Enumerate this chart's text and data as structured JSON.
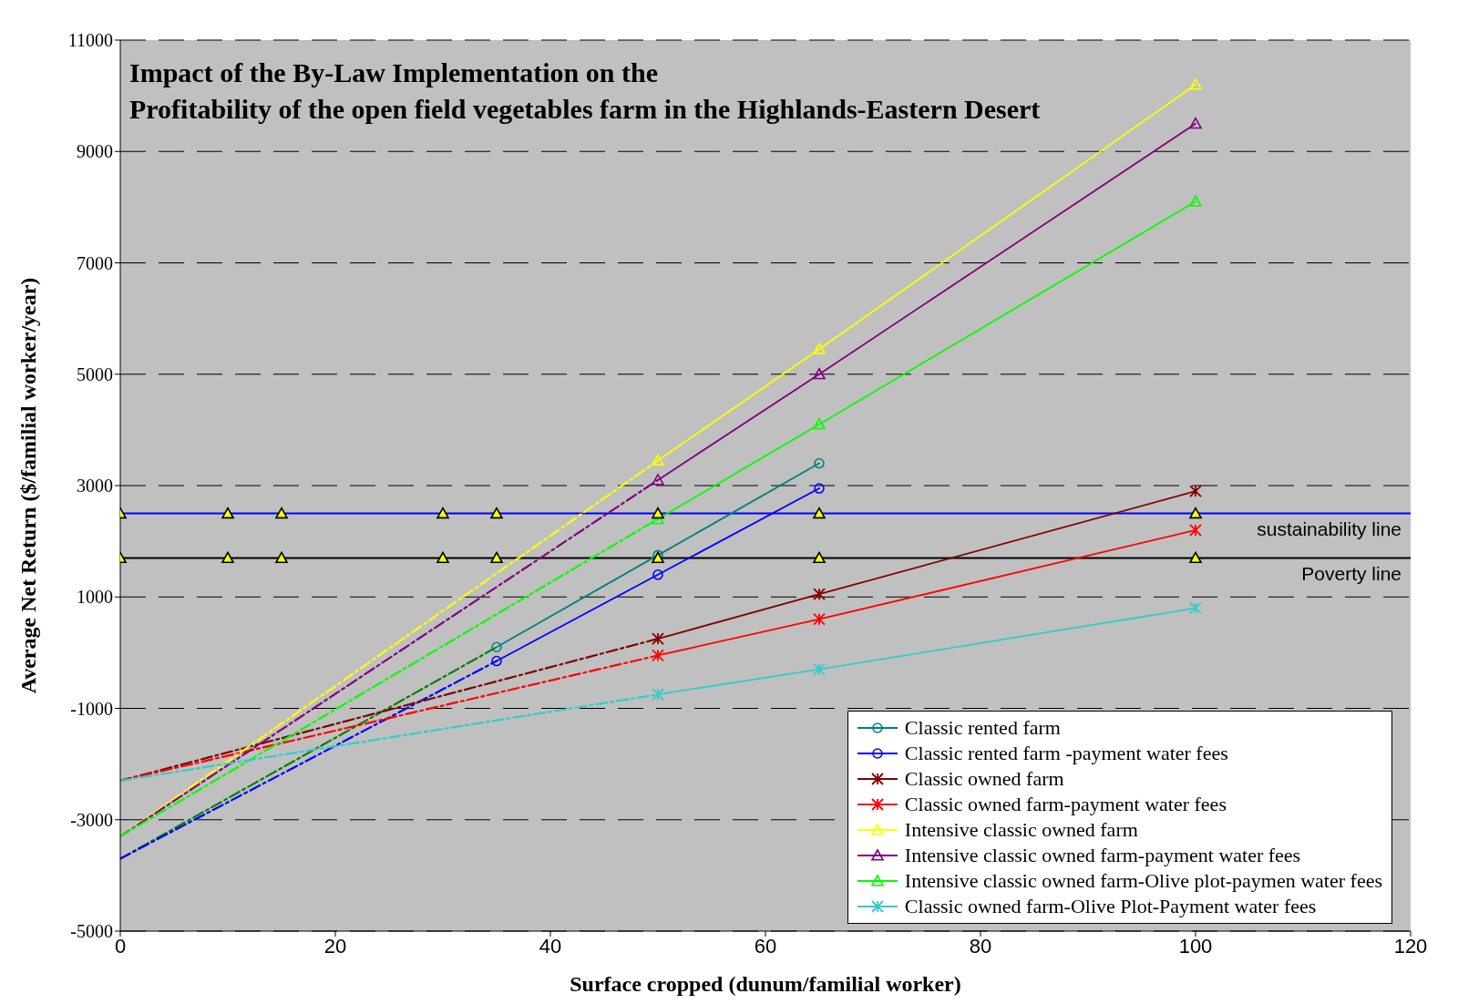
{
  "chart_data": {
    "type": "line",
    "title": "Impact of the By-Law Implementation on the\nProfitability of the open field vegetables farm in the Highlands-Eastern Desert",
    "xlabel": "Surface cropped (dunum/familial worker)",
    "ylabel": "Average Net Return ($/familial worker/year)",
    "xlim": [
      0,
      120
    ],
    "xticks": [
      0,
      20,
      40,
      60,
      80,
      100,
      120
    ],
    "ylim": [
      -5000,
      11000
    ],
    "yticks": [
      -5000,
      -3000,
      -1000,
      1000,
      3000,
      5000,
      7000,
      9000,
      11000
    ],
    "grid": "y",
    "legend": "bottom right",
    "series": [
      {
        "name": "Classic rented farm",
        "color": "#008080",
        "marker": "circle",
        "x": [
          35,
          50,
          65
        ],
        "values": [
          100,
          1750,
          3400
        ]
      },
      {
        "name": "Classic rented farm -payment water fees",
        "color": "#0000ff",
        "marker": "circle",
        "x": [
          35,
          50,
          65
        ],
        "values": [
          -150,
          1400,
          2950
        ]
      },
      {
        "name": "Classic owned farm",
        "color": "#800000",
        "marker": "cross",
        "x": [
          50,
          65,
          100
        ],
        "values": [
          250,
          1050,
          2900
        ]
      },
      {
        "name": "Classic owned farm-payment water fees",
        "color": "#ff0000",
        "marker": "cross",
        "x": [
          50,
          65,
          100
        ],
        "values": [
          -50,
          600,
          2200
        ]
      },
      {
        "name": "Intensive classic owned farm",
        "color": "#ffff00",
        "marker": "triangle",
        "x": [
          50,
          65,
          100
        ],
        "values": [
          3450,
          5450,
          10200
        ]
      },
      {
        "name": "Intensive classic owned farm-payment water fees",
        "color": "#800080",
        "marker": "triangle",
        "x": [
          50,
          65,
          100
        ],
        "values": [
          3100,
          5000,
          9500
        ]
      },
      {
        "name": "Intensive classic owned farm-Olive plot-paymen water fees",
        "color": "#00ff00",
        "marker": "triangle",
        "x": [
          50,
          65,
          100
        ],
        "values": [
          2400,
          4100,
          8100
        ]
      },
      {
        "name": "Classic owned farm-Olive Plot-Payment water fees",
        "color": "#33cccc",
        "marker": "cross",
        "x": [
          50,
          65,
          100
        ],
        "values": [
          -750,
          -300,
          800
        ]
      },
      {
        "type": "line",
        "color": "#008000",
        "marker": "none",
        "line_style": "dashed",
        "x": [
          0,
          35
        ],
        "values": [
          -3700,
          100
        ]
      },
      {
        "type": "line",
        "color": "#0000ff",
        "marker": "none",
        "line_style": "dashed",
        "x": [
          0,
          35
        ],
        "values": [
          -3700,
          -150
        ]
      },
      {
        "type": "line",
        "color": "#800000",
        "marker": "none",
        "line_style": "dashed",
        "x": [
          0,
          50
        ],
        "values": [
          -2300,
          250
        ]
      },
      {
        "type": "line",
        "color": "#ff0000",
        "marker": "none",
        "line_style": "dashed",
        "x": [
          0,
          50
        ],
        "values": [
          -2300,
          -50
        ]
      },
      {
        "type": "line",
        "color": "#ffff00",
        "marker": "none",
        "line_style": "dashed",
        "x": [
          0,
          50
        ],
        "values": [
          -3300,
          3450
        ]
      },
      {
        "type": "line",
        "color": "#800080",
        "marker": "none",
        "line_style": "dashed",
        "x": [
          0,
          50
        ],
        "values": [
          -3300,
          3100
        ]
      },
      {
        "type": "line",
        "color": "#00ff00",
        "marker": "none",
        "line_style": "dashed",
        "x": [
          0,
          50
        ],
        "values": [
          -3300,
          2400
        ]
      },
      {
        "type": "line",
        "color": "#33cccc",
        "marker": "none",
        "line_style": "dashed",
        "x": [
          0,
          50
        ],
        "values": [
          -2300,
          -750
        ]
      },
      {
        "type": "scatter",
        "color": "#ffff00",
        "marker": "triangle",
        "x": [
          0,
          10,
          15,
          30,
          35,
          50,
          65,
          100
        ],
        "values": [
          2500,
          2500,
          2500,
          2500,
          2500,
          2500,
          2500,
          2500
        ]
      },
      {
        "type": "scatter",
        "color": "#ffff00",
        "marker": "triangle",
        "x": [
          0,
          10,
          15,
          30,
          35,
          50,
          65,
          100
        ],
        "values": [
          1700,
          1700,
          1700,
          1700,
          1700,
          1700,
          1700,
          1700
        ]
      }
    ],
    "ref_lines": [
      {
        "axis": "y",
        "value": 2500,
        "label": "sustainability line",
        "color": "#0000ff"
      },
      {
        "axis": "y",
        "value": 1700,
        "label": "Poverty line",
        "color": "#000000"
      }
    ]
  }
}
